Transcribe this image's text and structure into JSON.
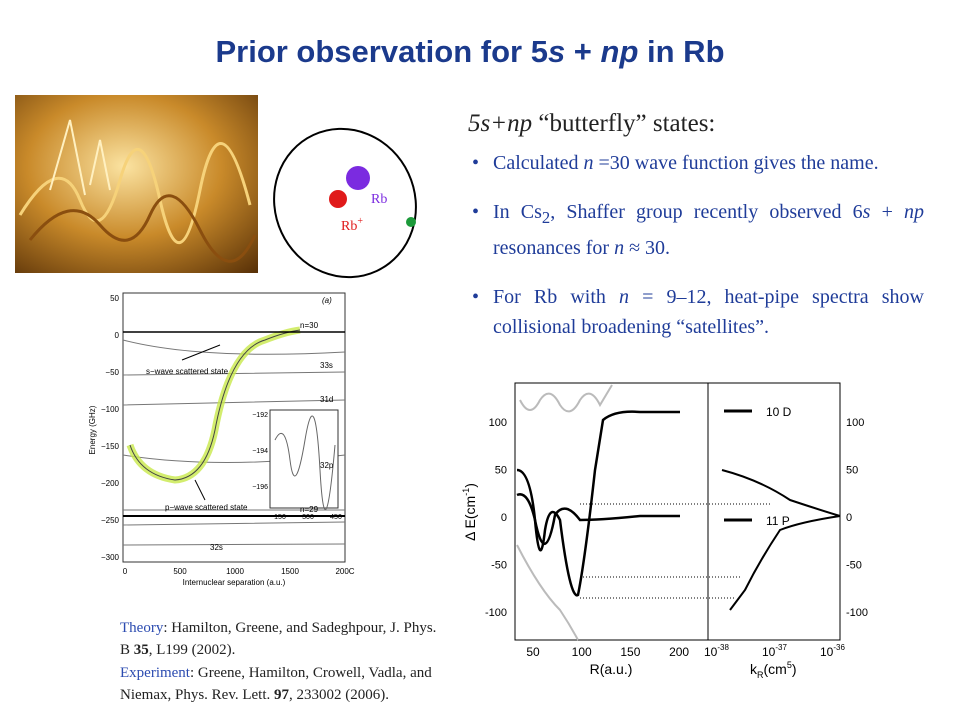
{
  "title": [
    "Prior observation for 5",
    "s",
    " + ",
    "np",
    " in Rb"
  ],
  "diagram": {
    "rb": "Rb",
    "rb_ion": [
      "Rb",
      "+"
    ]
  },
  "heading": [
    "5s+np",
    " “butterfly” states:"
  ],
  "bullets": [
    [
      "Calculated ",
      "n",
      " =30 wave function gives the name."
    ],
    [
      "In Cs",
      "2",
      ", Shaffer group recently observed 6",
      "s",
      " + ",
      "np",
      " resonances for ",
      "n",
      " ≈ 30."
    ],
    [
      "For Rb with ",
      "n",
      " = 9–12, heat-pipe spectra show collisional broadening “satellites”."
    ]
  ],
  "theory_figure": {
    "y_label": "Energy (GHz)",
    "x_label": "Internuclear separation (a.u.)",
    "panel": "(a)",
    "y_ticks": [
      "50",
      "0",
      "−50",
      "−100",
      "−150",
      "−200",
      "−250",
      "−300"
    ],
    "x_ticks": [
      "0",
      "500",
      "1000",
      "1500",
      "200C"
    ],
    "levels": [
      "n=30",
      "33s",
      "31d",
      "32p",
      "n=29",
      "32s"
    ],
    "s_wave": "s−wave scattered state",
    "p_wave": "p−wave scattered state",
    "inset_y_ticks": [
      "−192",
      "−194",
      "−196"
    ],
    "inset_x_ticks": [
      "150",
      "300",
      "450"
    ]
  },
  "experiment_figure": {
    "y_label": "Δ E(cm",
    "y_label_sup": "-1",
    "y_label_end": ")",
    "y_ticks": [
      "100",
      "50",
      "0",
      "-50",
      "-100"
    ],
    "x_ticks": [
      "50",
      "100",
      "150",
      "200"
    ],
    "x_label": "R(a.u.)",
    "kr_ticks": [
      [
        "10",
        "-38"
      ],
      [
        "10",
        "-37"
      ],
      [
        "10",
        "-36"
      ]
    ],
    "kr_label": [
      "k",
      "R",
      "(cm",
      "5",
      ")"
    ],
    "legend": [
      "10 D",
      "11 P"
    ]
  },
  "references": [
    [
      "Theory",
      ": Hamilton, Greene, and Sadeghpour, J. Phys. B ",
      "35",
      ", L199 (2002)."
    ],
    [
      "Experiment",
      ": Greene, Hamilton, Crowell, Vadla, and Niemax, Phys. Rev. Lett. ",
      "97",
      ", 233002 (2006)."
    ]
  ]
}
